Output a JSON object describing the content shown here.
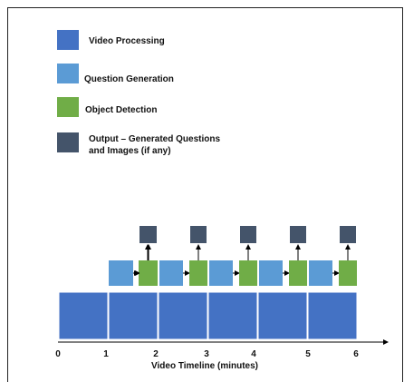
{
  "legend": [
    {
      "label": "Video Processing",
      "color": "#4472C4"
    },
    {
      "label": "Question Generation",
      "color": "#5B9BD5"
    },
    {
      "label": "Object Detection",
      "color": "#70AD47"
    },
    {
      "label": "Output – Generated Questions",
      "label_line2": "and Images (if any)",
      "color": "#44546A"
    }
  ],
  "timeline": {
    "axis_label": "Video Timeline (minutes)",
    "ticks": [
      "0",
      "1",
      "2",
      "3",
      "4",
      "5",
      "6"
    ],
    "segments": [
      {
        "start": 0,
        "end": 1
      },
      {
        "start": 1,
        "end": 2
      },
      {
        "start": 2,
        "end": 3
      },
      {
        "start": 3,
        "end": 4
      },
      {
        "start": 4,
        "end": 5
      },
      {
        "start": 5,
        "end": 6
      }
    ]
  }
}
